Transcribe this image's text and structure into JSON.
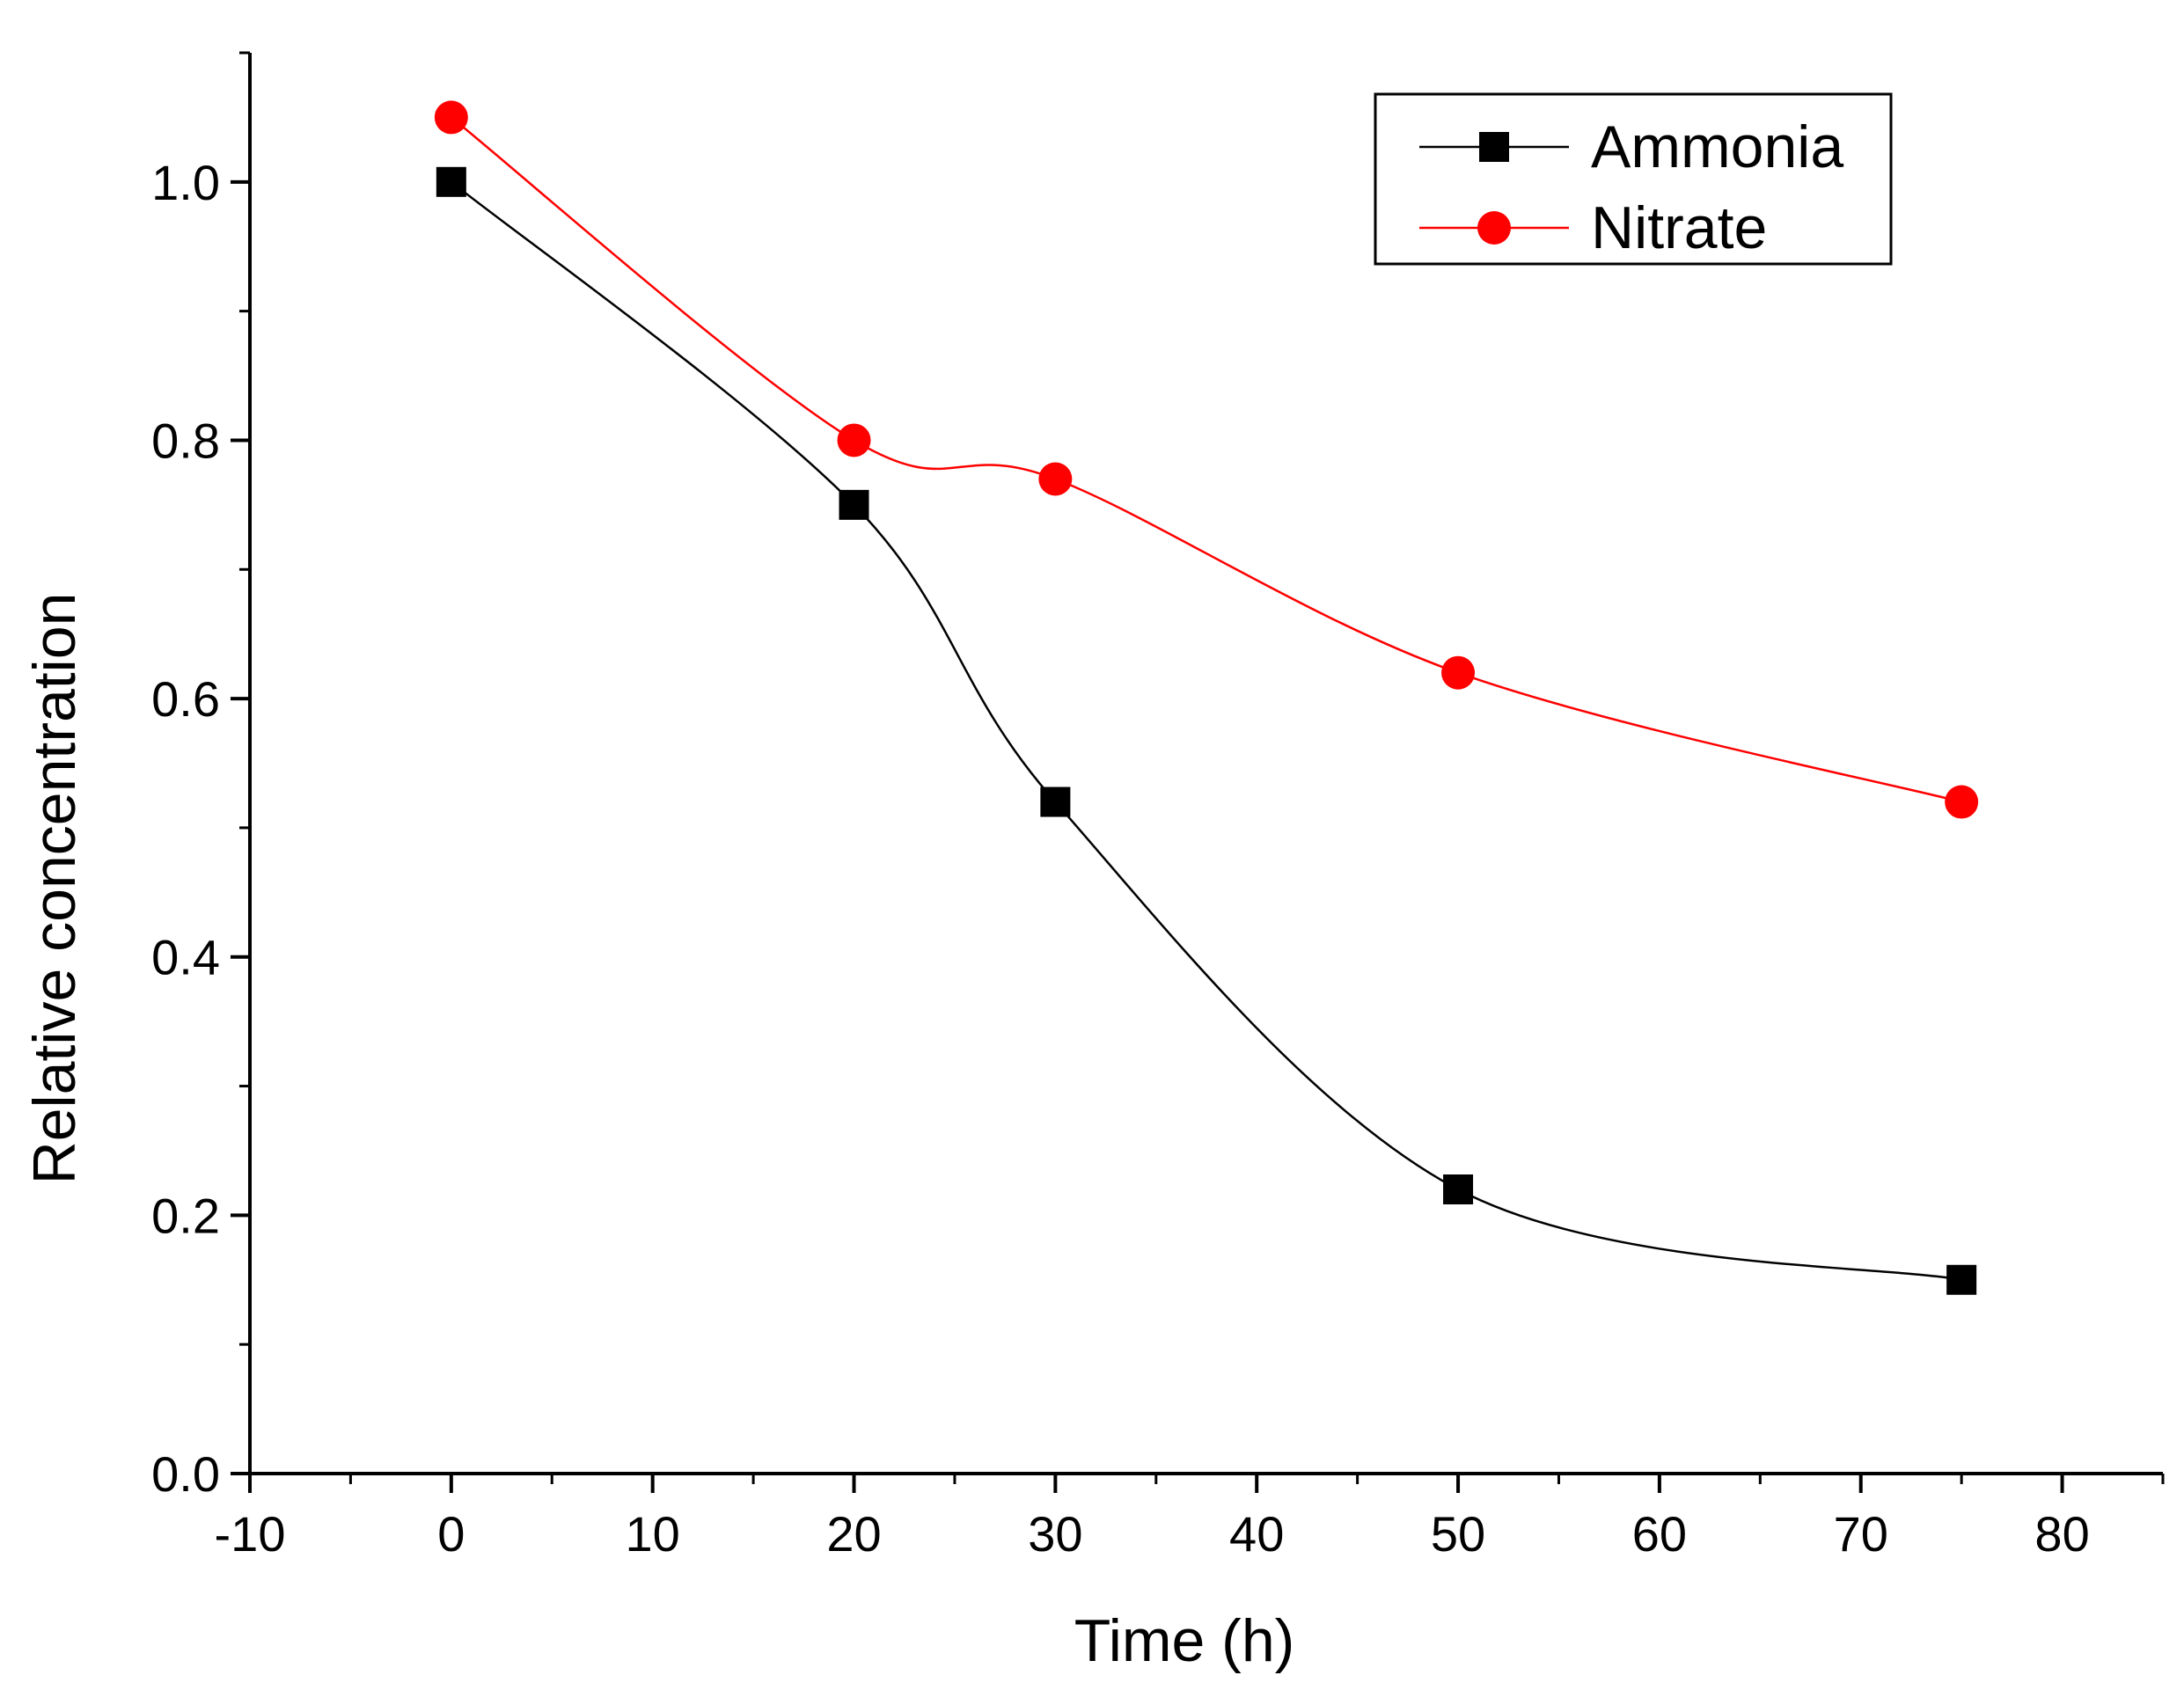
{
  "chart_data": {
    "type": "line",
    "title": "",
    "xlabel": "Time (h)",
    "ylabel": "Relative concentration",
    "xlim": [
      -10,
      85
    ],
    "ylim": [
      0.0,
      1.1
    ],
    "xticks": [
      -10,
      0,
      10,
      20,
      30,
      40,
      50,
      60,
      70,
      80
    ],
    "xtick_labels": [
      "-10",
      "0",
      "10",
      "20",
      "30",
      "40",
      "50",
      "60",
      "70",
      "80"
    ],
    "yticks": [
      0.0,
      0.2,
      0.4,
      0.6,
      0.8,
      1.0
    ],
    "ytick_labels": [
      "0.0",
      "0.2",
      "0.4",
      "0.6",
      "0.8",
      "1.0"
    ],
    "grid": false,
    "legend_position": "top-right",
    "series": [
      {
        "name": "Ammonia",
        "marker": "square",
        "color": "#000000",
        "x": [
          0,
          20,
          30,
          50,
          75
        ],
        "y": [
          1.0,
          0.75,
          0.52,
          0.22,
          0.15
        ]
      },
      {
        "name": "Nitrate",
        "marker": "circle",
        "color": "#ff0000",
        "x": [
          0,
          20,
          30,
          50,
          75
        ],
        "y": [
          1.05,
          0.8,
          0.77,
          0.62,
          0.52
        ]
      }
    ]
  }
}
